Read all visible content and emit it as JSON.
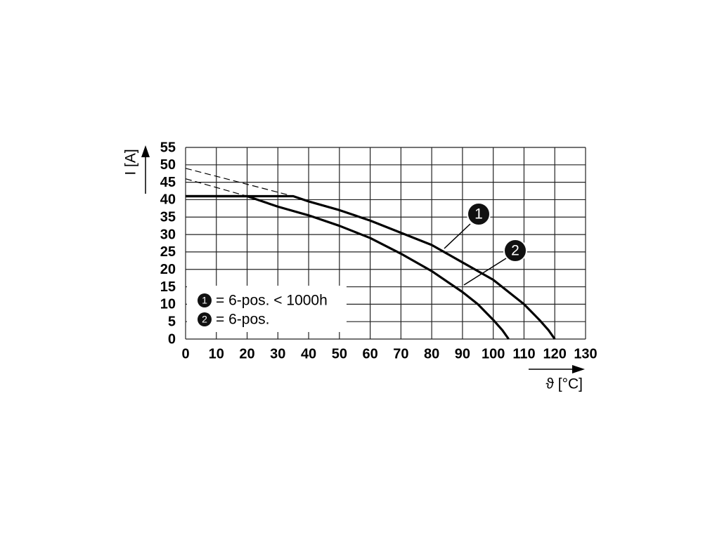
{
  "chart_data": {
    "type": "line",
    "x_label": "ϑ [°C]",
    "y_label": "I [A]",
    "xlim": [
      0,
      130
    ],
    "xticks": [
      0,
      10,
      20,
      30,
      40,
      50,
      60,
      70,
      80,
      90,
      100,
      110,
      120,
      130
    ],
    "ylim": [
      0,
      55
    ],
    "yticks": [
      0,
      5,
      10,
      15,
      20,
      25,
      30,
      35,
      40,
      45,
      50,
      55
    ],
    "grid": true,
    "series": [
      {
        "name": "= 6-pos. < 1000h",
        "marker": "1",
        "color": "#000000",
        "x": [
          0,
          10,
          20,
          30,
          35,
          40,
          50,
          60,
          70,
          80,
          90,
          100,
          110,
          115,
          118,
          120
        ],
        "values": [
          41,
          41,
          41,
          41,
          41,
          39.5,
          37,
          34,
          30.5,
          27,
          22,
          17,
          10,
          5.5,
          2.5,
          0
        ],
        "extrapolation": {
          "x": [
            0,
            35
          ],
          "values": [
            49,
            41
          ]
        }
      },
      {
        "name": "= 6-pos.",
        "marker": "2",
        "color": "#000000",
        "x": [
          0,
          10,
          20,
          30,
          40,
          50,
          60,
          70,
          80,
          90,
          95,
          100,
          103,
          105
        ],
        "values": [
          41,
          41,
          41,
          38,
          35.5,
          32.5,
          29,
          24.5,
          19.5,
          13.5,
          10,
          5.5,
          2.5,
          0
        ],
        "extrapolation": {
          "x": [
            0,
            20
          ],
          "values": [
            46,
            41
          ]
        }
      }
    ]
  }
}
